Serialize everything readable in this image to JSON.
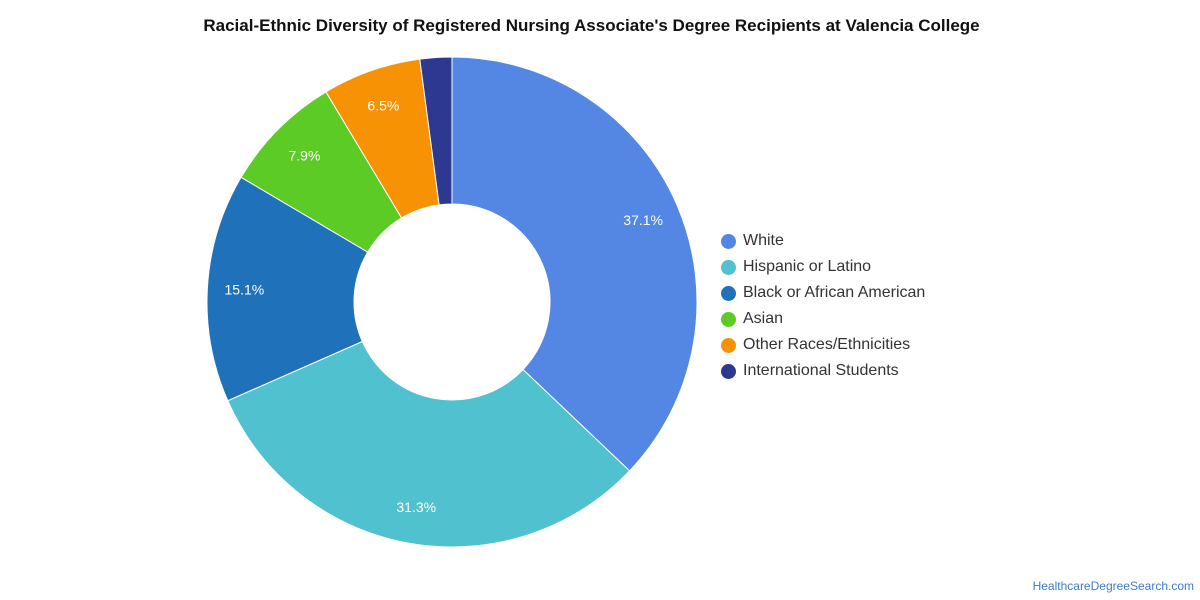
{
  "chart_data": {
    "type": "pie",
    "variant": "donut",
    "title": "Racial-Ethnic Diversity of Registered Nursing Associate's Degree Recipients at Valencia College",
    "legend_position": "right",
    "slices": [
      {
        "label": "White",
        "value": 37.1,
        "display": "37.1%",
        "color": "#5387e3"
      },
      {
        "label": "Hispanic or Latino",
        "value": 31.3,
        "display": "31.3%",
        "color": "#50c1cf"
      },
      {
        "label": "Black or African American",
        "value": 15.1,
        "display": "15.1%",
        "color": "#1f72ba"
      },
      {
        "label": "Asian",
        "value": 7.9,
        "display": "7.9%",
        "color": "#5dcb25"
      },
      {
        "label": "Other Races/Ethnicities",
        "value": 6.5,
        "display": "6.5%",
        "color": "#f69203"
      },
      {
        "label": "International Students",
        "value": 2.1,
        "display": "",
        "color": "#2d3990"
      }
    ]
  },
  "footer": {
    "source": "HealthcareDegreeSearch.com"
  }
}
